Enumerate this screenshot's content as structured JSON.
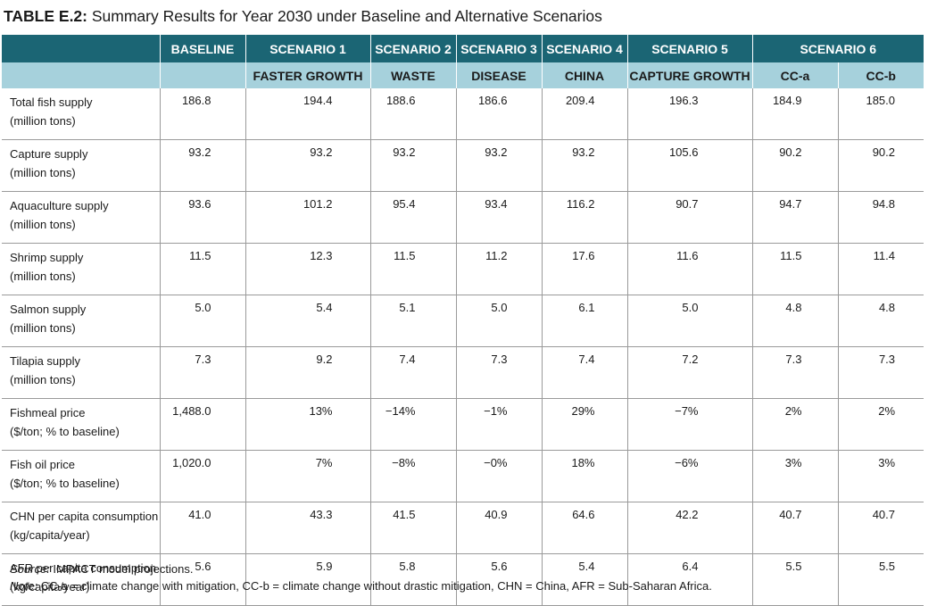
{
  "title": {
    "label": "TABLE E.2:",
    "text": " Summary Results for Year 2030 under Baseline and Alternative Scenarios"
  },
  "header_top": [
    "",
    "BASELINE",
    "SCENARIO 1",
    "SCENARIO 2",
    "SCENARIO 3",
    "SCENARIO 4",
    "SCENARIO 5",
    "SCENARIO 6"
  ],
  "header_sub": [
    "",
    "",
    "FASTER GROWTH",
    "WASTE",
    "DISEASE",
    "CHINA",
    "CAPTURE GROWTH",
    "CC-a",
    "CC-b"
  ],
  "rows": [
    {
      "label1": "Total fish supply",
      "label2": "(million tons)",
      "values": [
        "186.8",
        "194.4",
        "188.6",
        "186.6",
        "209.4",
        "196.3",
        "184.9",
        "185.0"
      ]
    },
    {
      "label1": "Capture supply",
      "label2": "(million tons)",
      "values": [
        "93.2",
        "93.2",
        "93.2",
        "93.2",
        "93.2",
        "105.6",
        "90.2",
        "90.2"
      ]
    },
    {
      "label1": "Aquaculture supply",
      "label2": "(million tons)",
      "values": [
        "93.6",
        "101.2",
        "95.4",
        "93.4",
        "116.2",
        "90.7",
        "94.7",
        "94.8"
      ]
    },
    {
      "label1": "Shrimp supply",
      "label2": "(million tons)",
      "values": [
        "11.5",
        "12.3",
        "11.5",
        "11.2",
        "17.6",
        "11.6",
        "11.5",
        "11.4"
      ]
    },
    {
      "label1": "Salmon supply",
      "label2": "(million tons)",
      "values": [
        "5.0",
        "5.4",
        "5.1",
        "5.0",
        "6.1",
        "5.0",
        "4.8",
        "4.8"
      ]
    },
    {
      "label1": "Tilapia supply",
      "label2": "(million tons)",
      "values": [
        "7.3",
        "9.2",
        "7.4",
        "7.3",
        "7.4",
        "7.2",
        "7.3",
        "7.3"
      ]
    },
    {
      "label1": "Fishmeal price",
      "label2": "($/ton; % to baseline)",
      "values": [
        "1,488.0",
        "13%",
        "−14%",
        "−1%",
        "29%",
        "−7%",
        "2%",
        "2%"
      ]
    },
    {
      "label1": "Fish oil price",
      "label2": "($/ton; % to baseline)",
      "values": [
        "1,020.0",
        "7%",
        "−8%",
        "−0%",
        "18%",
        "−6%",
        "3%",
        "3%"
      ]
    },
    {
      "label1": "CHN per capita consumption",
      "label2": "(kg/capita/year)",
      "values": [
        "41.0",
        "43.3",
        "41.5",
        "40.9",
        "64.6",
        "42.2",
        "40.7",
        "40.7"
      ]
    },
    {
      "label1": "AFR per capita consumption",
      "label2": "(kg/capita/year)",
      "values": [
        "5.6",
        "5.9",
        "5.8",
        "5.6",
        "5.4",
        "6.4",
        "5.5",
        "5.5"
      ]
    }
  ],
  "footer": {
    "source_label": "Source:",
    "source_text": " IMPACT model projections.",
    "note_label": "Note:",
    "note_text": " CC-a = climate change with mitigation, CC-b = climate change without drastic mitigation, CHN = China, AFR = Sub-Saharan Africa."
  }
}
